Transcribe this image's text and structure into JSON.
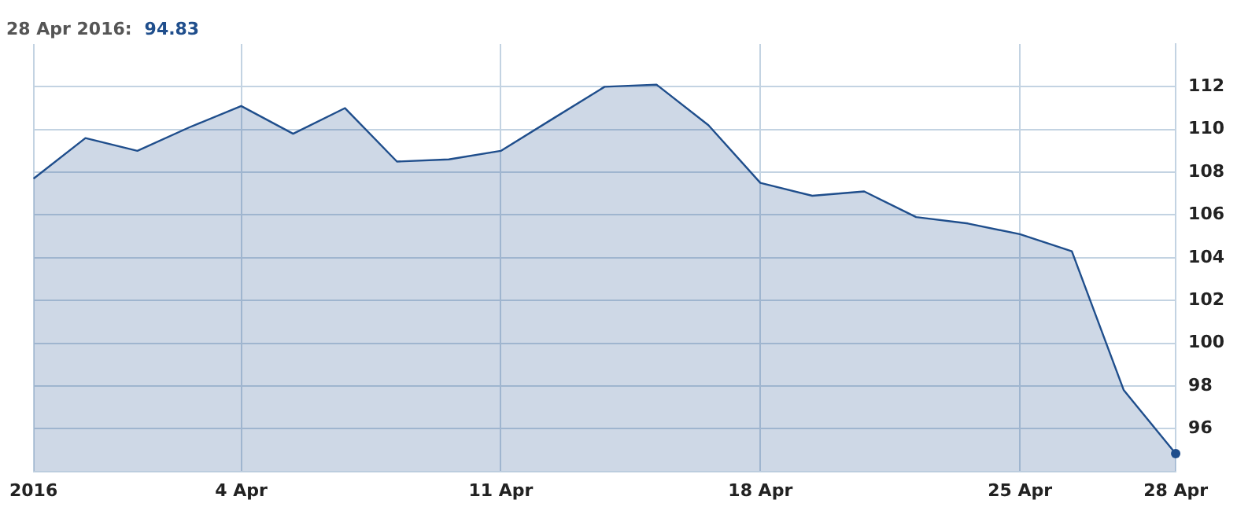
{
  "chart_data": {
    "type": "area",
    "categories": [
      "2016",
      null,
      null,
      null,
      "4 Apr",
      null,
      null,
      null,
      null,
      "11 Apr",
      null,
      null,
      null,
      null,
      "18 Apr",
      null,
      null,
      null,
      null,
      "25 Apr",
      null,
      null,
      "28 Apr"
    ],
    "series": [
      {
        "color": "#1f4e8c",
        "values": [
          107.7,
          109.6,
          109.0,
          110.1,
          111.1,
          109.8,
          111.0,
          108.5,
          108.6,
          109.0,
          110.5,
          112.0,
          112.1,
          110.2,
          107.5,
          106.9,
          107.1,
          105.9,
          105.6,
          105.1,
          104.3,
          97.8,
          94.83
        ]
      }
    ],
    "ylim": [
      94,
      114
    ],
    "yticks": [
      96,
      98,
      100,
      102,
      104,
      106,
      108,
      110,
      112
    ],
    "grid": true,
    "legend": false,
    "marker": "none",
    "annotations": [
      "28 Apr 2016:",
      "94.83"
    ]
  }
}
